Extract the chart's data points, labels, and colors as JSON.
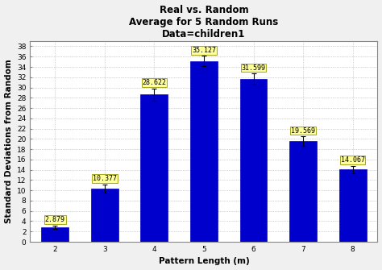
{
  "title": "Real vs. Random\nAverage for 5 Random Runs\nData=children1",
  "xlabel": "Pattern Length (m)",
  "ylabel": "Standard Deviations from Random",
  "categories": [
    2,
    3,
    4,
    5,
    6,
    7,
    8
  ],
  "values": [
    2.879,
    10.377,
    28.622,
    35.127,
    31.599,
    19.569,
    14.067
  ],
  "errors": [
    0.3,
    0.8,
    1.2,
    1.0,
    1.1,
    0.9,
    0.7
  ],
  "bar_color": "#0000CC",
  "bar_edge_color": "#0000CC",
  "error_color": "#000000",
  "ylim": [
    0,
    39
  ],
  "yticks": [
    0,
    2,
    4,
    6,
    8,
    10,
    12,
    14,
    16,
    18,
    20,
    22,
    24,
    26,
    28,
    30,
    32,
    34,
    36,
    38
  ],
  "annotation_bg_color": "#FFFF99",
  "annotation_border_color": "#999900",
  "annotation_fontsize": 6,
  "title_fontsize": 8.5,
  "axis_label_fontsize": 7.5,
  "tick_fontsize": 6.5,
  "figure_bg_color": "#F0F0F0",
  "plot_bg_color": "#FFFFFF",
  "grid_color": "#AAAAAA",
  "bar_width": 0.55
}
